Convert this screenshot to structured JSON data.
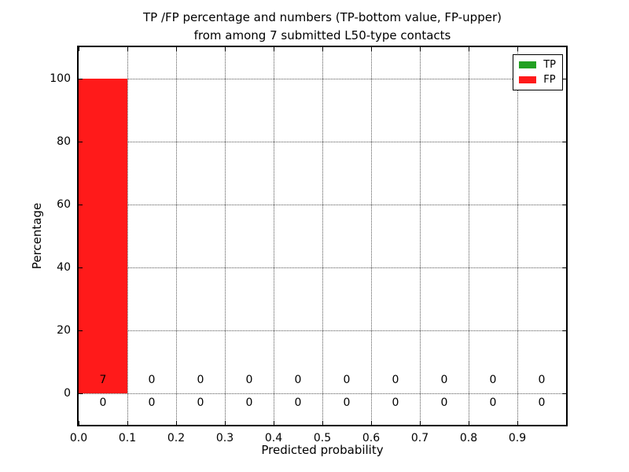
{
  "chart_data": {
    "type": "bar",
    "title_lines": [
      "TP /FP percentage and numbers (TP-bottom value, FP-upper)",
      "from among 7 submitted L50-type contacts"
    ],
    "xlabel": "Predicted probability",
    "ylabel": "Percentage",
    "xlim": [
      0.0,
      1.0
    ],
    "ylim": [
      -10,
      110
    ],
    "xticks": [
      0.0,
      0.1,
      0.2,
      0.3,
      0.4,
      0.5,
      0.6,
      0.7,
      0.8,
      0.9
    ],
    "xtick_labels": [
      "0.0",
      "0.1",
      "0.2",
      "0.3",
      "0.4",
      "0.5",
      "0.6",
      "0.7",
      "0.8",
      "0.9"
    ],
    "yticks": [
      0,
      20,
      40,
      60,
      80,
      100
    ],
    "ytick_labels": [
      "0",
      "20",
      "40",
      "60",
      "80",
      "100"
    ],
    "grid": true,
    "grid_style": "dotted",
    "total_submitted_contacts": 7,
    "bin_start": [
      0.0,
      0.1,
      0.2,
      0.3,
      0.4,
      0.5,
      0.6,
      0.7,
      0.8,
      0.9
    ],
    "bin_width": 0.1,
    "stacking_note": "TP-bottom value, FP-upper",
    "series": [
      {
        "name": "TP",
        "color": "#22a022",
        "percent": [
          0,
          0,
          0,
          0,
          0,
          0,
          0,
          0,
          0,
          0
        ],
        "counts": [
          0,
          0,
          0,
          0,
          0,
          0,
          0,
          0,
          0,
          0
        ]
      },
      {
        "name": "FP",
        "color": "#ff1a1a",
        "percent": [
          100,
          0,
          0,
          0,
          0,
          0,
          0,
          0,
          0,
          0
        ],
        "counts": [
          7,
          0,
          0,
          0,
          0,
          0,
          0,
          0,
          0,
          0
        ]
      }
    ],
    "annotations": {
      "fp_counts_row_above_zero_line": [
        "7",
        "0",
        "0",
        "0",
        "0",
        "0",
        "0",
        "0",
        "0",
        "0"
      ],
      "tp_counts_row_below_zero_line": [
        "0",
        "0",
        "0",
        "0",
        "0",
        "0",
        "0",
        "0",
        "0",
        "0"
      ]
    },
    "legend": {
      "position": "upper right",
      "entries": [
        {
          "label": "TP",
          "color": "#22a022"
        },
        {
          "label": "FP",
          "color": "#ff1a1a"
        }
      ]
    },
    "colors": {
      "axes_border": "#000000",
      "gridline": "#555555",
      "background": "#ffffff",
      "text": "#000000"
    }
  }
}
